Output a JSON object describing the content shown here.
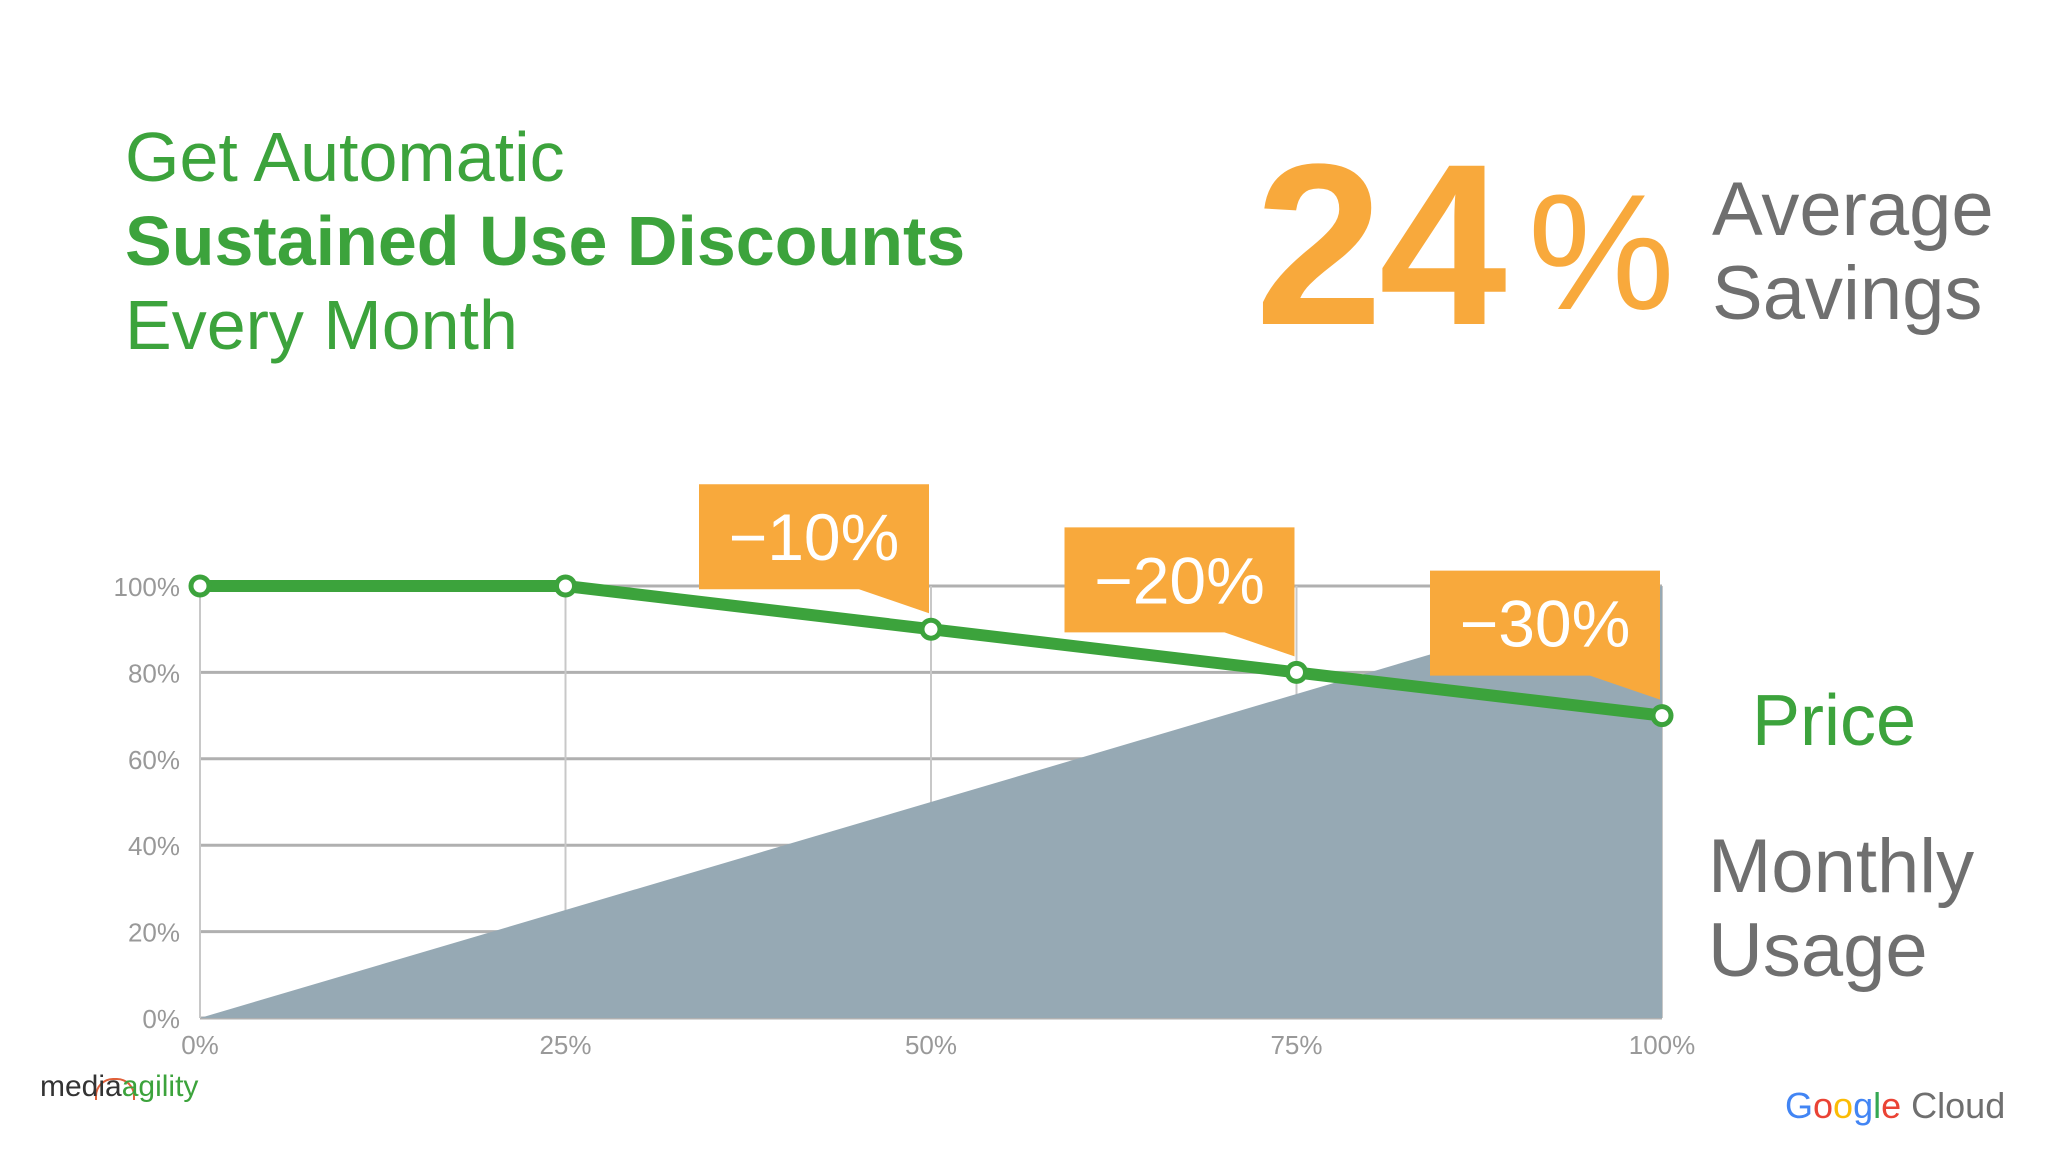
{
  "title": {
    "line1": "Get Automatic",
    "line2": "Sustained Use Discounts",
    "line3": "Every Month"
  },
  "savings": {
    "number": "24",
    "percent_sign": "%",
    "label_line1": "Average",
    "label_line2": "Savings"
  },
  "labels": {
    "price": "Price",
    "usage_line1": "Monthly",
    "usage_line2": "Usage"
  },
  "brands": {
    "left_prefix": "media",
    "left_suffix": "agility",
    "right_google": [
      "G",
      "o",
      "o",
      "g",
      "l",
      "e"
    ],
    "right_suffix": "Cloud"
  },
  "colors": {
    "price_line": "#3ca33c",
    "usage_area": "#96a9b4",
    "callout": "#f8a93c",
    "grid": "#b0b0b0"
  },
  "chart_data": {
    "type": "line",
    "x": [
      0,
      25,
      50,
      75,
      100
    ],
    "x_tick_labels": [
      "0%",
      "25%",
      "50%",
      "75%",
      "100%"
    ],
    "y_tick_labels": [
      "0%",
      "20%",
      "40%",
      "60%",
      "80%",
      "100%"
    ],
    "y_ticks": [
      0,
      20,
      40,
      60,
      80,
      100
    ],
    "xlim": [
      0,
      100
    ],
    "ylim": [
      0,
      100
    ],
    "series": [
      {
        "name": "Price",
        "type": "line",
        "x": [
          0,
          25,
          50,
          75,
          100
        ],
        "values": [
          100,
          100,
          90,
          80,
          70
        ]
      },
      {
        "name": "Monthly Usage",
        "type": "area",
        "x": [
          0,
          100
        ],
        "values": [
          0,
          100
        ]
      }
    ],
    "annotations": [
      {
        "text": "−10%",
        "x": 50,
        "y": 90
      },
      {
        "text": "−20%",
        "x": 75,
        "y": 80
      },
      {
        "text": "−30%",
        "x": 100,
        "y": 70
      }
    ],
    "grid": true
  }
}
